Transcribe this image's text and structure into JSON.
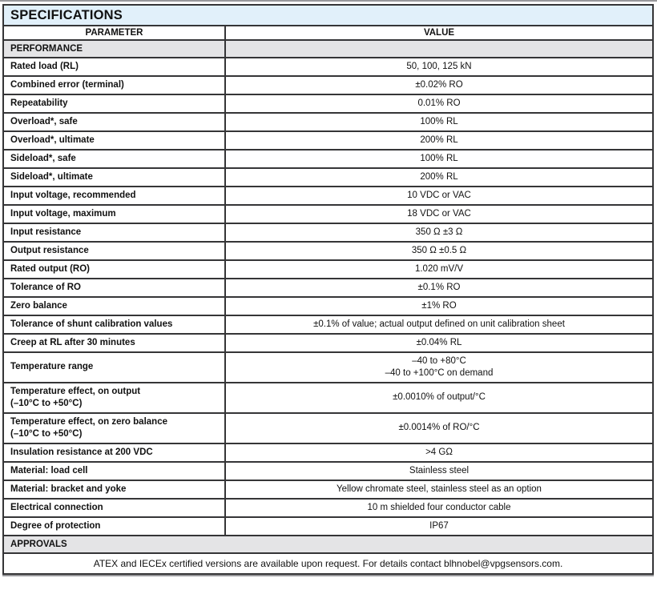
{
  "page": {
    "title": "SPECIFICATIONS",
    "columns": {
      "parameter": "PARAMETER",
      "value": "VALUE"
    }
  },
  "sections": [
    {
      "name": "PERFORMANCE",
      "rows": [
        {
          "parameter": [
            "Rated load (RL)"
          ],
          "value": [
            "50, 100, 125 kN"
          ]
        },
        {
          "parameter": [
            "Combined error (terminal)"
          ],
          "value": [
            "±0.02% RO"
          ]
        },
        {
          "parameter": [
            "Repeatability"
          ],
          "value": [
            "0.01% RO"
          ]
        },
        {
          "parameter": [
            "Overload*, safe"
          ],
          "value": [
            "100% RL"
          ]
        },
        {
          "parameter": [
            "Overload*, ultimate"
          ],
          "value": [
            "200% RL"
          ]
        },
        {
          "parameter": [
            "Sideload*, safe"
          ],
          "value": [
            "100% RL"
          ]
        },
        {
          "parameter": [
            "Sideload*, ultimate"
          ],
          "value": [
            "200% RL"
          ]
        },
        {
          "parameter": [
            "Input voltage, recommended"
          ],
          "value": [
            "10 VDC or VAC"
          ]
        },
        {
          "parameter": [
            "Input voltage, maximum"
          ],
          "value": [
            "18 VDC or VAC"
          ]
        },
        {
          "parameter": [
            "Input resistance"
          ],
          "value": [
            "350 Ω ±3 Ω"
          ]
        },
        {
          "parameter": [
            "Output resistance"
          ],
          "value": [
            "350 Ω ±0.5 Ω"
          ]
        },
        {
          "parameter": [
            "Rated output (RO)"
          ],
          "value": [
            "1.020 mV/V"
          ]
        },
        {
          "parameter": [
            "Tolerance of RO"
          ],
          "value": [
            "±0.1% RO"
          ]
        },
        {
          "parameter": [
            "Zero balance"
          ],
          "value": [
            "±1% RO"
          ]
        },
        {
          "parameter": [
            "Tolerance of shunt calibration values"
          ],
          "value": [
            "±0.1% of value; actual output defined on unit calibration sheet"
          ]
        },
        {
          "parameter": [
            "Creep at RL after 30 minutes"
          ],
          "value": [
            "±0.04% RL"
          ]
        },
        {
          "parameter": [
            "Temperature range"
          ],
          "value": [
            "–40 to +80°C",
            "–40 to +100°C on demand"
          ]
        },
        {
          "parameter": [
            "Temperature effect, on output",
            "(–10°C to +50°C)"
          ],
          "value": [
            "±0.0010% of output/°C"
          ]
        },
        {
          "parameter": [
            "Temperature effect, on zero balance",
            "(–10°C to +50°C)"
          ],
          "value": [
            "±0.0014% of RO/°C"
          ]
        },
        {
          "parameter": [
            "Insulation resistance at 200 VDC"
          ],
          "value": [
            ">4 GΩ"
          ]
        },
        {
          "parameter": [
            "Material: load cell"
          ],
          "value": [
            "Stainless steel"
          ]
        },
        {
          "parameter": [
            "Material: bracket and yoke"
          ],
          "value": [
            "Yellow chromate steel, stainless steel as an option"
          ]
        },
        {
          "parameter": [
            "Electrical connection"
          ],
          "value": [
            "10 m shielded four conductor cable"
          ]
        },
        {
          "parameter": [
            "Degree of protection"
          ],
          "value": [
            "IP67"
          ]
        }
      ]
    },
    {
      "name": "APPROVALS",
      "rows": [],
      "note": "ATEX and IECEx certified versions are available upon request. For details contact blhnobel@vpgsensors.com."
    }
  ],
  "colors": {
    "title_bg": "#e1f0fa",
    "section_bg": "#e4e4e6",
    "border": "#353537"
  }
}
